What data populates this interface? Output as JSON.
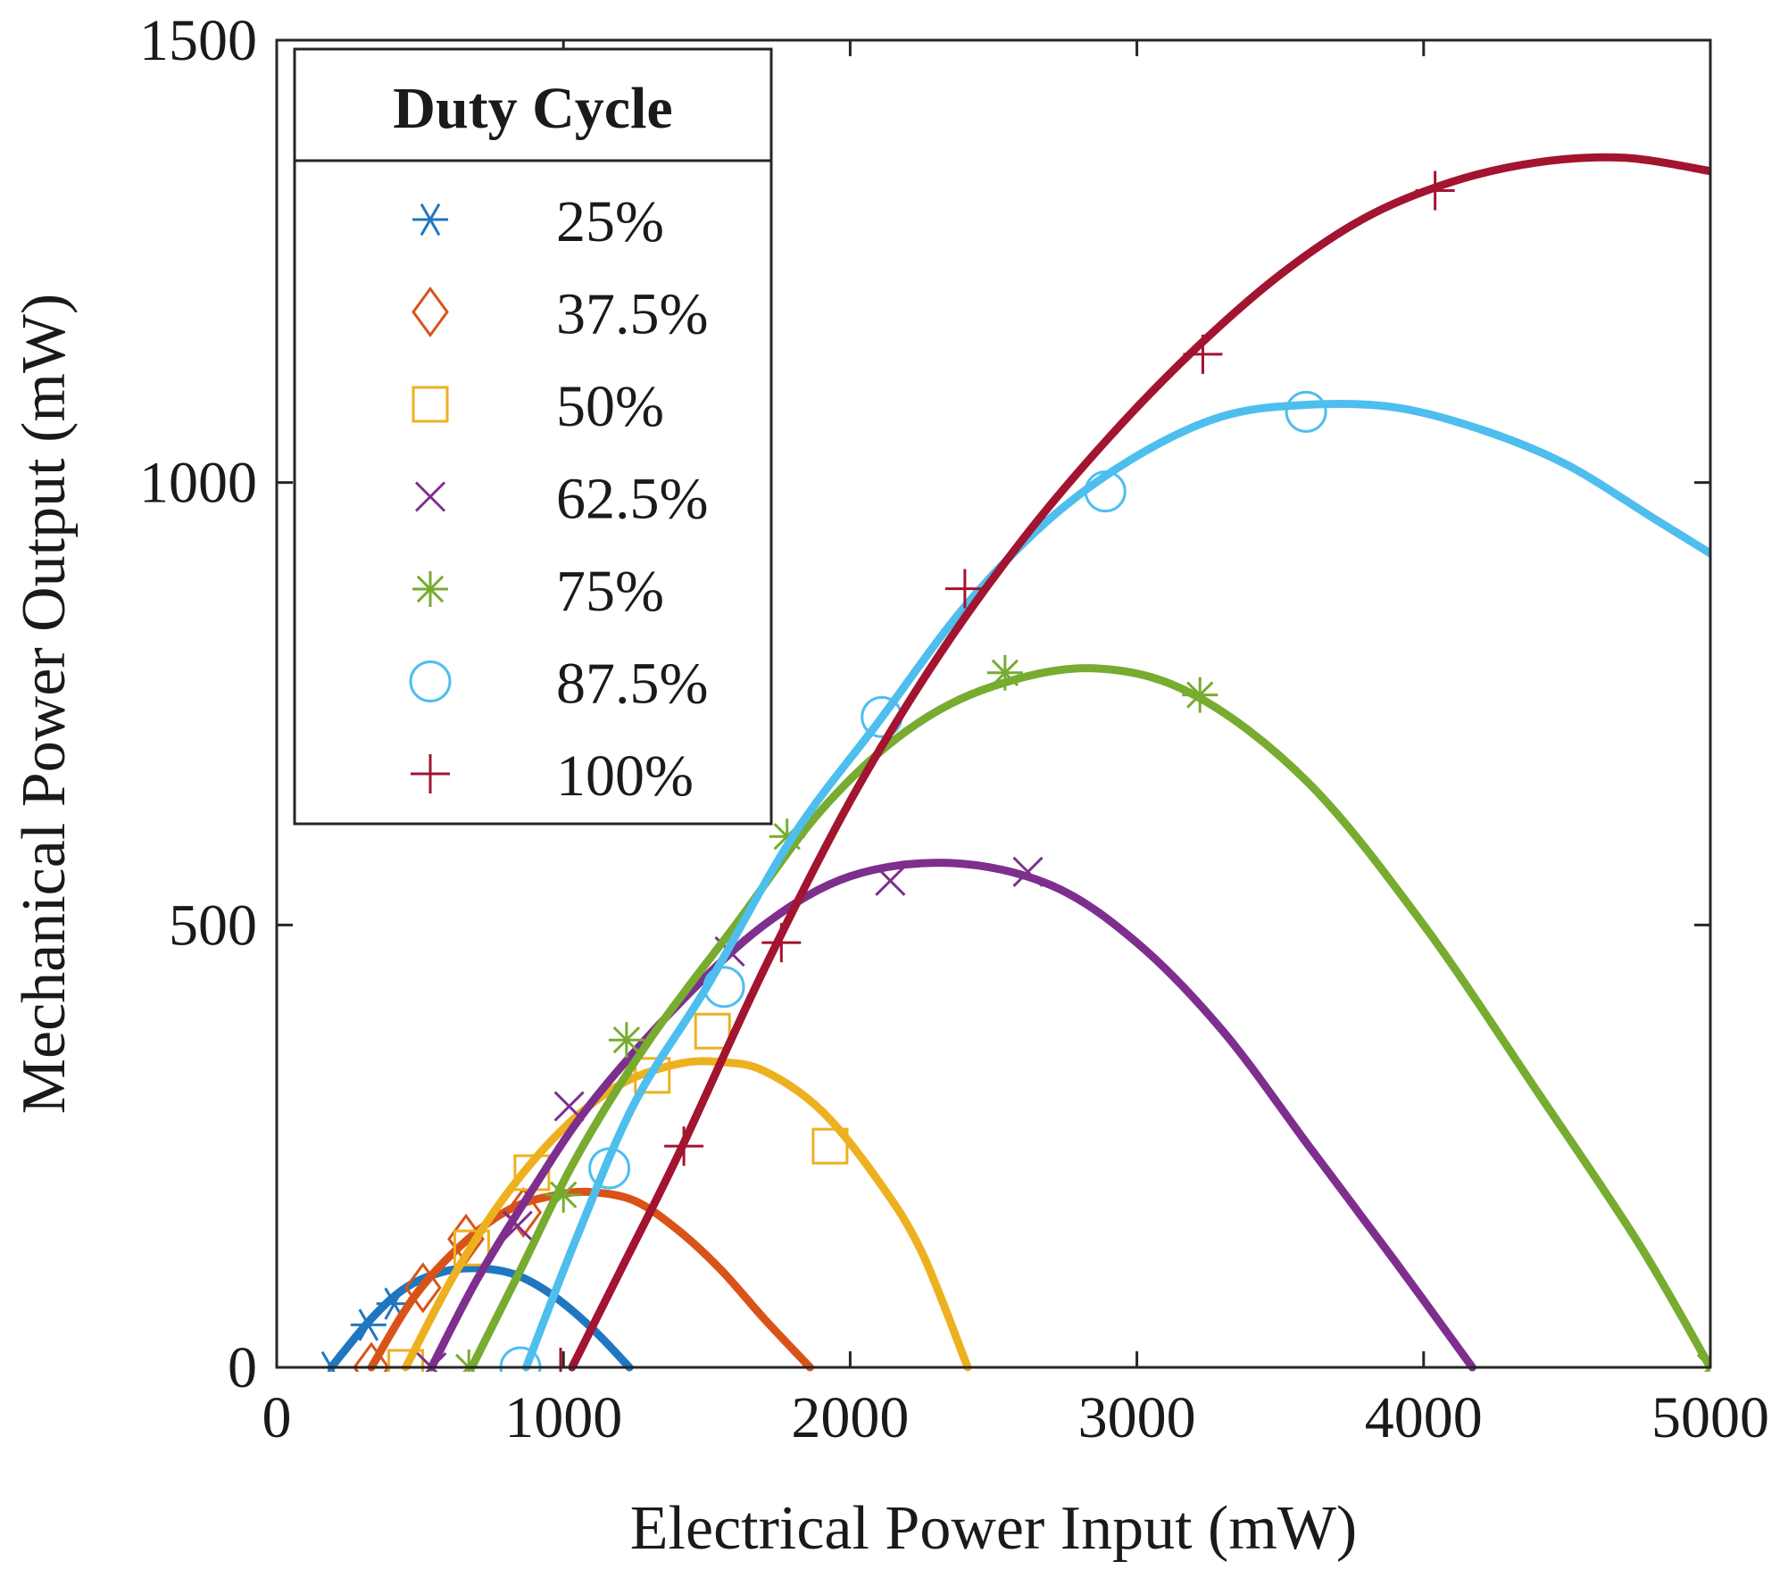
{
  "chart_data": {
    "type": "scatter",
    "xlabel": "Electrical Power Input (mW)",
    "ylabel": "Mechanical Power Output (mW)",
    "xlim": [
      0,
      5000
    ],
    "ylim": [
      0,
      1500
    ],
    "xticks": [
      0,
      1000,
      2000,
      3000,
      4000,
      5000
    ],
    "yticks": [
      0,
      500,
      1000,
      1500
    ],
    "grid": false,
    "legend": {
      "title": "Duty Cycle",
      "placement": "top-left"
    },
    "series": [
      {
        "name": "25%",
        "marker": "asterisk",
        "color": "#1f77c0",
        "points": [
          [
            190,
            0
          ],
          [
            320,
            48
          ],
          [
            410,
            72
          ]
        ],
        "fit": [
          [
            190,
            0
          ],
          [
            330,
            55
          ],
          [
            450,
            90
          ],
          [
            580,
            108
          ],
          [
            700,
            112
          ],
          [
            830,
            105
          ],
          [
            960,
            82
          ],
          [
            1100,
            44
          ],
          [
            1230,
            0
          ]
        ]
      },
      {
        "name": "37.5%",
        "marker": "diamond",
        "color": "#d95319",
        "points": [
          [
            330,
            0
          ],
          [
            510,
            90
          ],
          [
            660,
            145
          ],
          [
            860,
            175
          ]
        ],
        "fit": [
          [
            330,
            0
          ],
          [
            480,
            80
          ],
          [
            650,
            140
          ],
          [
            820,
            180
          ],
          [
            980,
            195
          ],
          [
            1100,
            198
          ],
          [
            1250,
            188
          ],
          [
            1400,
            155
          ],
          [
            1550,
            110
          ],
          [
            1700,
            55
          ],
          [
            1860,
            0
          ]
        ]
      },
      {
        "name": "50%",
        "marker": "square",
        "color": "#edb120",
        "points": [
          [
            450,
            0
          ],
          [
            680,
            135
          ],
          [
            890,
            220
          ],
          [
            1310,
            330
          ],
          [
            1520,
            380
          ],
          [
            1930,
            250
          ]
        ],
        "fit": [
          [
            450,
            0
          ],
          [
            620,
            105
          ],
          [
            800,
            195
          ],
          [
            1000,
            270
          ],
          [
            1200,
            320
          ],
          [
            1400,
            343
          ],
          [
            1550,
            345
          ],
          [
            1700,
            335
          ],
          [
            1900,
            290
          ],
          [
            2100,
            210
          ],
          [
            2250,
            130
          ],
          [
            2410,
            0
          ]
        ]
      },
      {
        "name": "62.5%",
        "marker": "x",
        "color": "#7e2f8e",
        "points": [
          [
            540,
            0
          ],
          [
            840,
            160
          ],
          [
            1020,
            295
          ],
          [
            1580,
            470
          ],
          [
            2140,
            550
          ],
          [
            2620,
            560
          ]
        ],
        "fit": [
          [
            540,
            0
          ],
          [
            700,
            100
          ],
          [
            900,
            205
          ],
          [
            1100,
            300
          ],
          [
            1400,
            410
          ],
          [
            1700,
            500
          ],
          [
            2000,
            555
          ],
          [
            2350,
            570
          ],
          [
            2700,
            545
          ],
          [
            3000,
            480
          ],
          [
            3300,
            380
          ],
          [
            3600,
            250
          ],
          [
            3900,
            120
          ],
          [
            4170,
            0
          ]
        ]
      },
      {
        "name": "75%",
        "marker": "asterisk-plus",
        "color": "#77ac30",
        "points": [
          [
            670,
            0
          ],
          [
            1000,
            195
          ],
          [
            1220,
            370
          ],
          [
            1780,
            600
          ],
          [
            2540,
            785
          ],
          [
            3220,
            760
          ],
          [
            5000,
            0
          ]
        ],
        "fit": [
          [
            680,
            0
          ],
          [
            850,
            110
          ],
          [
            1050,
            240
          ],
          [
            1300,
            370
          ],
          [
            1600,
            500
          ],
          [
            1900,
            630
          ],
          [
            2200,
            720
          ],
          [
            2500,
            770
          ],
          [
            2850,
            790
          ],
          [
            3200,
            760
          ],
          [
            3600,
            660
          ],
          [
            4000,
            500
          ],
          [
            4400,
            310
          ],
          [
            4750,
            140
          ],
          [
            5000,
            0
          ]
        ]
      },
      {
        "name": "87.5%",
        "marker": "circle",
        "color": "#4dbeee",
        "points": [
          [
            850,
            0
          ],
          [
            1160,
            225
          ],
          [
            1560,
            430
          ],
          [
            2110,
            735
          ],
          [
            2890,
            990
          ],
          [
            3590,
            1080
          ]
        ],
        "fit": [
          [
            870,
            0
          ],
          [
            1050,
            150
          ],
          [
            1250,
            300
          ],
          [
            1500,
            430
          ],
          [
            1800,
            600
          ],
          [
            2100,
            730
          ],
          [
            2400,
            860
          ],
          [
            2700,
            960
          ],
          [
            3000,
            1030
          ],
          [
            3300,
            1075
          ],
          [
            3600,
            1088
          ],
          [
            3900,
            1085
          ],
          [
            4200,
            1060
          ],
          [
            4500,
            1020
          ],
          [
            4800,
            960
          ],
          [
            5000,
            920
          ]
        ]
      },
      {
        "name": "100%",
        "marker": "plus",
        "color": "#a2142f",
        "points": [
          [
            990,
            0
          ],
          [
            1420,
            250
          ],
          [
            1760,
            480
          ],
          [
            2400,
            880
          ],
          [
            3230,
            1145
          ],
          [
            4040,
            1330
          ]
        ],
        "fit": [
          [
            1030,
            0
          ],
          [
            1200,
            110
          ],
          [
            1400,
            240
          ],
          [
            1700,
            450
          ],
          [
            2000,
            640
          ],
          [
            2300,
            800
          ],
          [
            2600,
            935
          ],
          [
            2900,
            1050
          ],
          [
            3200,
            1150
          ],
          [
            3500,
            1235
          ],
          [
            3800,
            1300
          ],
          [
            4100,
            1340
          ],
          [
            4400,
            1362
          ],
          [
            4700,
            1367
          ],
          [
            5000,
            1352
          ]
        ]
      }
    ]
  }
}
